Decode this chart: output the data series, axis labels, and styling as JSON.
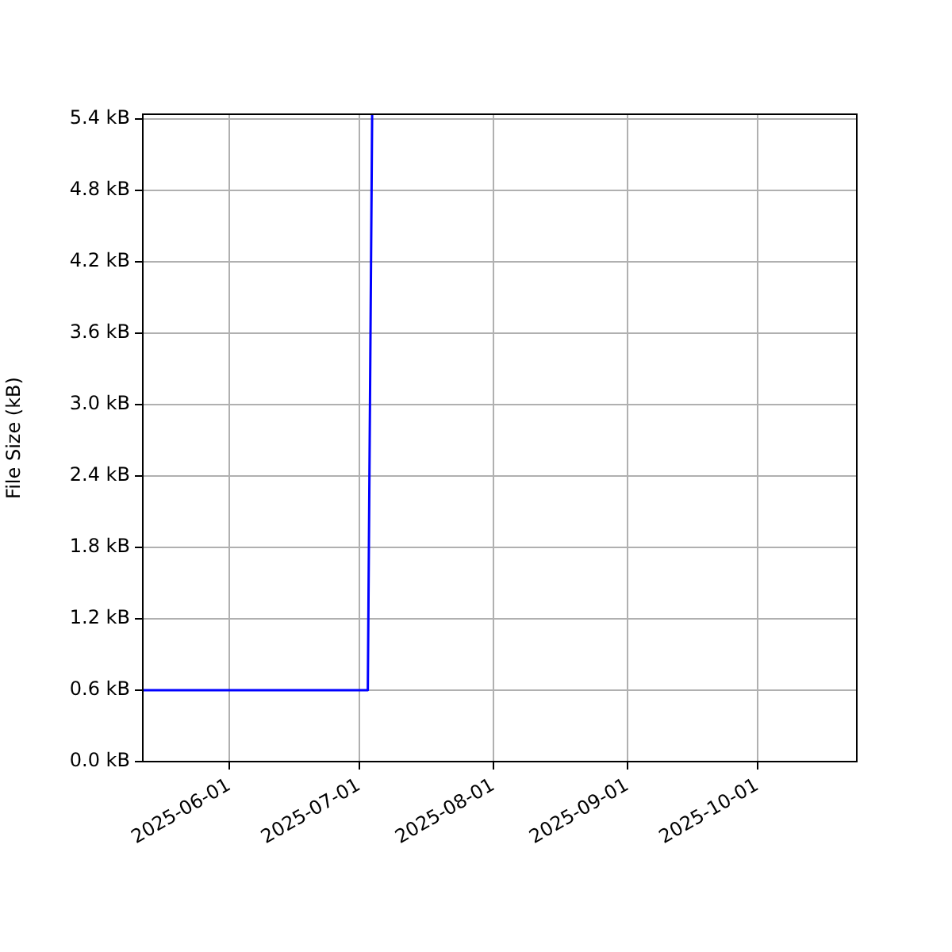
{
  "chart_data": {
    "type": "line",
    "ylabel": "File Size (kB)",
    "x": [
      "2025-05-12",
      "2025-07-03",
      "2025-07-04"
    ],
    "series": [
      {
        "color": "#0000ff",
        "values": [
          0.6,
          0.6,
          5.44
        ]
      }
    ],
    "xlim": [
      "2025-05-12",
      "2025-10-24"
    ],
    "xticks": [
      "2025-06-01",
      "2025-07-01",
      "2025-08-01",
      "2025-09-01",
      "2025-10-01"
    ],
    "ylim": [
      0,
      5.44
    ],
    "yticks": [
      {
        "value": 0,
        "label": "0.0 kB"
      },
      {
        "value": 0.6,
        "label": "0.6 kB"
      },
      {
        "value": 1.2,
        "label": "1.2 kB"
      },
      {
        "value": 1.8,
        "label": "1.8 kB"
      },
      {
        "value": 2.4,
        "label": "2.4 kB"
      },
      {
        "value": 3,
        "label": "3.0 kB"
      },
      {
        "value": 3.6,
        "label": "3.6 kB"
      },
      {
        "value": 4.2,
        "label": "4.2 kB"
      },
      {
        "value": 4.8,
        "label": "4.8 kB"
      },
      {
        "value": 5.4,
        "label": "5.4 kB"
      }
    ],
    "grid": true,
    "legend": false,
    "marker": "none",
    "line_style": "solid"
  }
}
